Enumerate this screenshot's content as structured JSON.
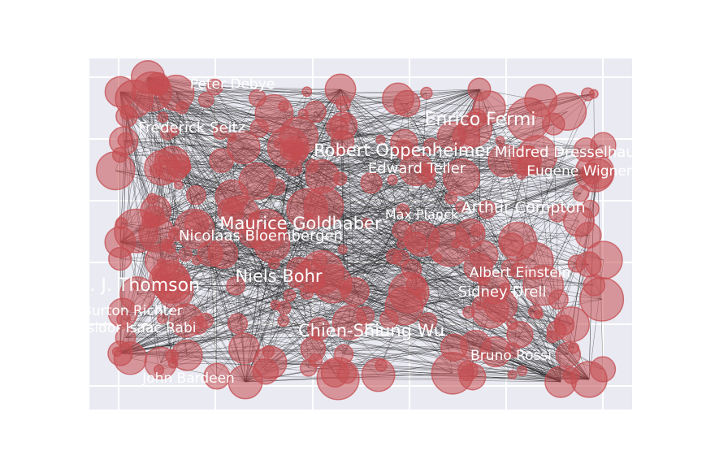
{
  "colors": {
    "plot_background": "#eaeaf2",
    "grid": "#ffffff",
    "node_fill": "#c44e52",
    "edge": "#1a1a1a",
    "label": "#ffffff"
  },
  "graph": {
    "labels": [
      {
        "text": "Peter Debye"
      },
      {
        "text": "Frederick Seitz"
      },
      {
        "text": "Enrico Fermi"
      },
      {
        "text": "Robert Oppenheimer"
      },
      {
        "text": "Mildred Dresselhaus"
      },
      {
        "text": "Edward Teller"
      },
      {
        "text": "Eugene Wigner"
      },
      {
        "text": "Arthur Compton"
      },
      {
        "text": "Max Planck"
      },
      {
        "text": "Maurice Goldhaber"
      },
      {
        "text": "Nicolaas Bloembergen"
      },
      {
        "text": "J. J. Thomson"
      },
      {
        "text": "Niels Bohr"
      },
      {
        "text": "Albert Einstein"
      },
      {
        "text": "Sidney Drell"
      },
      {
        "text": "Burton Richter"
      },
      {
        "text": "Isidor Isaac Rabi"
      },
      {
        "text": "Chien-Shiung Wu"
      },
      {
        "text": "Bruno Rossi"
      },
      {
        "text": "John Bardeen"
      }
    ]
  }
}
